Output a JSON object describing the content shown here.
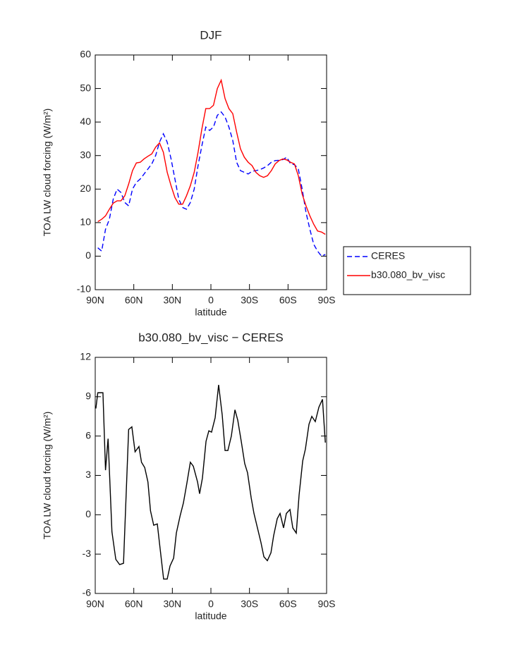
{
  "chart_data": [
    {
      "type": "line",
      "title": "DJF",
      "xlabel": "latitude",
      "ylabel": "TOA LW cloud forcing (W/m²)",
      "x": [
        88,
        85,
        82,
        79,
        76,
        73,
        70,
        67,
        64,
        61,
        58,
        55,
        52,
        49,
        46,
        43,
        40,
        37,
        34,
        31,
        28,
        25,
        22,
        19,
        16,
        13,
        10,
        7,
        4,
        1,
        -2,
        -5,
        -8,
        -11,
        -14,
        -17,
        -20,
        -23,
        -26,
        -29,
        -32,
        -35,
        -38,
        -41,
        -44,
        -47,
        -50,
        -53,
        -56,
        -59,
        -62,
        -65,
        -68,
        -71,
        -74,
        -77,
        -80,
        -83,
        -86,
        -89
      ],
      "series": [
        {
          "name": "CERES",
          "color": "#0000ff",
          "line_style": "dashed",
          "values": [
            2.5,
            1.5,
            8,
            11,
            17,
            20,
            19,
            16,
            15,
            20,
            22,
            23,
            24.5,
            26,
            27.5,
            30,
            34,
            36.5,
            34,
            29,
            23,
            17,
            14.5,
            14,
            16,
            20,
            27,
            33,
            38.5,
            37.5,
            38.5,
            42,
            43,
            41.5,
            38.5,
            34.5,
            28,
            25.5,
            25,
            24.5,
            25.3,
            25.5,
            25.8,
            26.3,
            27,
            28,
            28.5,
            28.6,
            28.8,
            29.5,
            27.5,
            27.3,
            26,
            20,
            13,
            8,
            3.5,
            1.5,
            0,
            0.5
          ]
        },
        {
          "name": "b30.080_bv_visc",
          "color": "#ff0000",
          "line_style": "solid",
          "values": [
            10.3,
            11,
            12,
            14,
            15.8,
            16.5,
            16.5,
            18,
            21.5,
            25.5,
            27.8,
            28,
            29,
            29.8,
            30.5,
            32.5,
            33.8,
            31,
            25,
            21,
            17.5,
            15.5,
            15.5,
            18,
            21,
            25,
            31,
            38,
            44,
            44,
            45,
            50,
            52.5,
            47,
            44,
            42.5,
            37,
            32,
            29.5,
            28,
            27,
            25,
            24,
            23.5,
            24,
            25.5,
            27.5,
            28.5,
            29,
            28.7,
            28,
            27.5,
            24,
            18.5,
            15,
            12,
            9.5,
            7.5,
            7.2,
            6.5
          ]
        }
      ],
      "xlim": [
        90,
        -90
      ],
      "xticks": [
        {
          "value": 90,
          "label": "90N"
        },
        {
          "value": 60,
          "label": "60N"
        },
        {
          "value": 30,
          "label": "30N"
        },
        0,
        {
          "value": -30,
          "label": "30S"
        },
        {
          "value": -60,
          "label": "60S"
        },
        {
          "value": -90,
          "label": "90S"
        }
      ],
      "ylim": [
        -10,
        60
      ],
      "yticks": [
        -10,
        0,
        10,
        20,
        30,
        40,
        50,
        60
      ],
      "legend": "outside-right"
    },
    {
      "type": "line",
      "title": "b30.080_bv_visc − CERES",
      "xlabel": "latitude",
      "ylabel": "TOA LW cloud forcing (W/m²)",
      "x": [
        89.5,
        88,
        84,
        82,
        80,
        77,
        74,
        71,
        68,
        64,
        61.5,
        59,
        56,
        54,
        51.5,
        49,
        47,
        44.5,
        41.7,
        39.5,
        36.8,
        34,
        31.8,
        29,
        26.9,
        24,
        21.4,
        18.7,
        16,
        13.7,
        10.4,
        8.8,
        6.6,
        3.8,
        1.6,
        -0.5,
        -3.3,
        -6,
        -8.8,
        -11,
        -13.2,
        -15.9,
        -18.7,
        -20.9,
        -23.6,
        -26.3,
        -28.5,
        -31.3,
        -33.5,
        -36.2,
        -38.9,
        -41.2,
        -43.9,
        -46.7,
        -48.8,
        -51.6,
        -53.8,
        -56.5,
        -58.7,
        -61.5,
        -63.7,
        -66.4,
        -68.6,
        -71.4,
        -73.5,
        -76.3,
        -78.5,
        -81.2,
        -84,
        -86.8,
        -89
      ],
      "values": [
        8.1,
        9.3,
        9.3,
        3.4,
        5.8,
        -1.3,
        -3.4,
        -3.8,
        -3.7,
        6.5,
        6.7,
        4.8,
        5.2,
        4.0,
        3.6,
        2.5,
        0.3,
        -0.8,
        -0.7,
        -2.6,
        -4.9,
        -4.9,
        -3.9,
        -3.3,
        -1.4,
        -0.1,
        0.9,
        2.4,
        4.0,
        3.7,
        2.5,
        1.6,
        2.8,
        5.6,
        6.4,
        6.3,
        7.4,
        9.9,
        7.6,
        4.9,
        4.9,
        6.0,
        8.0,
        7.2,
        5.6,
        3.9,
        3.2,
        1.3,
        0.1,
        -1.0,
        -2.1,
        -3.2,
        -3.5,
        -2.9,
        -1.6,
        -0.3,
        0.1,
        -1.0,
        0.1,
        0.4,
        -1.0,
        -1.4,
        1.5,
        4.1,
        5.0,
        6.9,
        7.5,
        7.1,
        8.2,
        8.8,
        5.5
      ],
      "color": "#000000",
      "line_style": "solid",
      "xlim": [
        90,
        -90
      ],
      "xticks": [
        {
          "value": 90,
          "label": "90N"
        },
        {
          "value": 60,
          "label": "60N"
        },
        {
          "value": 30,
          "label": "30N"
        },
        0,
        {
          "value": -30,
          "label": "30S"
        },
        {
          "value": -60,
          "label": "60S"
        },
        {
          "value": -90,
          "label": "90S"
        }
      ],
      "ylim": [
        -6,
        12
      ],
      "yticks": [
        -6,
        -3,
        0,
        3,
        6,
        9,
        12
      ]
    }
  ]
}
